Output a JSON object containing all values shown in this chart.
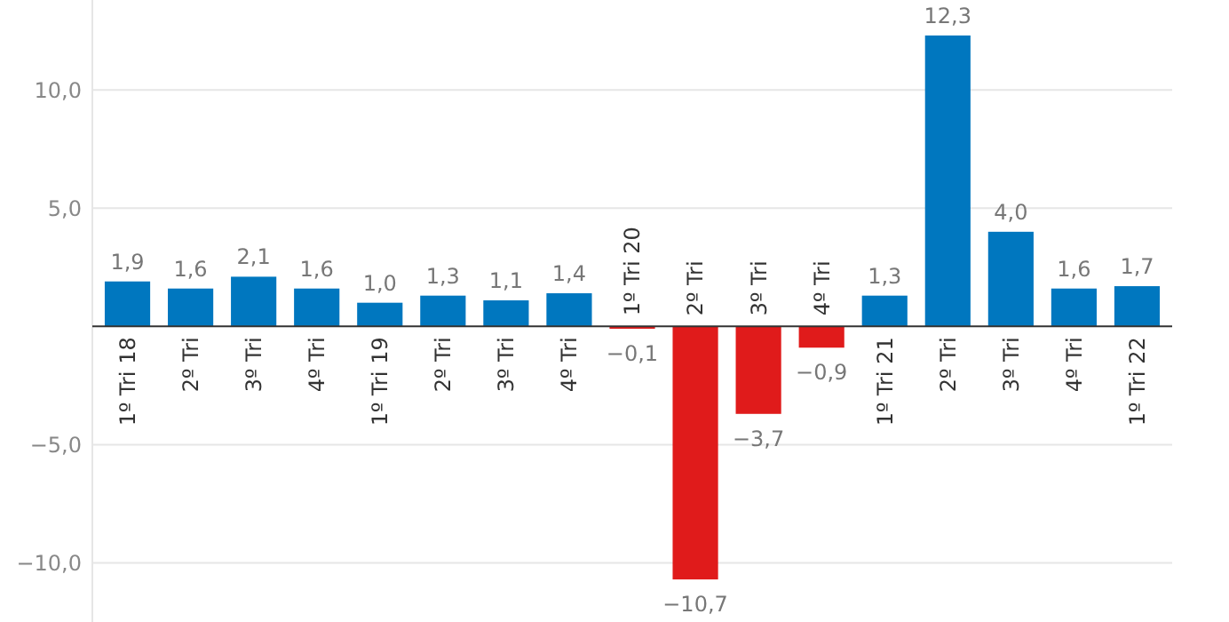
{
  "chart_data": {
    "type": "bar",
    "categories": [
      "1º Tri 18",
      "2º Tri",
      "3º Tri",
      "4º Tri",
      "1º Tri 19",
      "2º Tri",
      "3º Tri",
      "4º Tri",
      "1º Tri 20",
      "2º Tri",
      "3º Tri",
      "4º Tri",
      "1º Tri 21",
      "2º Tri",
      "3º Tri",
      "4º Tri",
      "1º Tri 22"
    ],
    "values": [
      1.9,
      1.6,
      2.1,
      1.6,
      1.0,
      1.3,
      1.1,
      1.4,
      -0.1,
      -10.7,
      -3.7,
      -0.9,
      1.3,
      12.3,
      4.0,
      1.6,
      1.7
    ],
    "value_labels": [
      "1,9",
      "1,6",
      "2,1",
      "1,6",
      "1,0",
      "1,3",
      "1,1",
      "1,4",
      "−0,1",
      "−10,7",
      "−3,7",
      "−0,9",
      "1,3",
      "12,3",
      "4,0",
      "1,6",
      "1,7"
    ],
    "colors": [
      "#0077bf",
      "#0077bf",
      "#0077bf",
      "#0077bf",
      "#0077bf",
      "#0077bf",
      "#0077bf",
      "#0077bf",
      "#e01b1b",
      "#e01b1b",
      "#e01b1b",
      "#e01b1b",
      "#0077bf",
      "#0077bf",
      "#0077bf",
      "#0077bf",
      "#0077bf"
    ],
    "ylim": [
      -12.5,
      13.8
    ],
    "yticks": [
      {
        "value": -10,
        "label": "−10,0"
      },
      {
        "value": -5,
        "label": "−5,0"
      },
      {
        "value": 5,
        "label": "5,0"
      },
      {
        "value": 10,
        "label": "10,0"
      }
    ],
    "grid": "y"
  }
}
